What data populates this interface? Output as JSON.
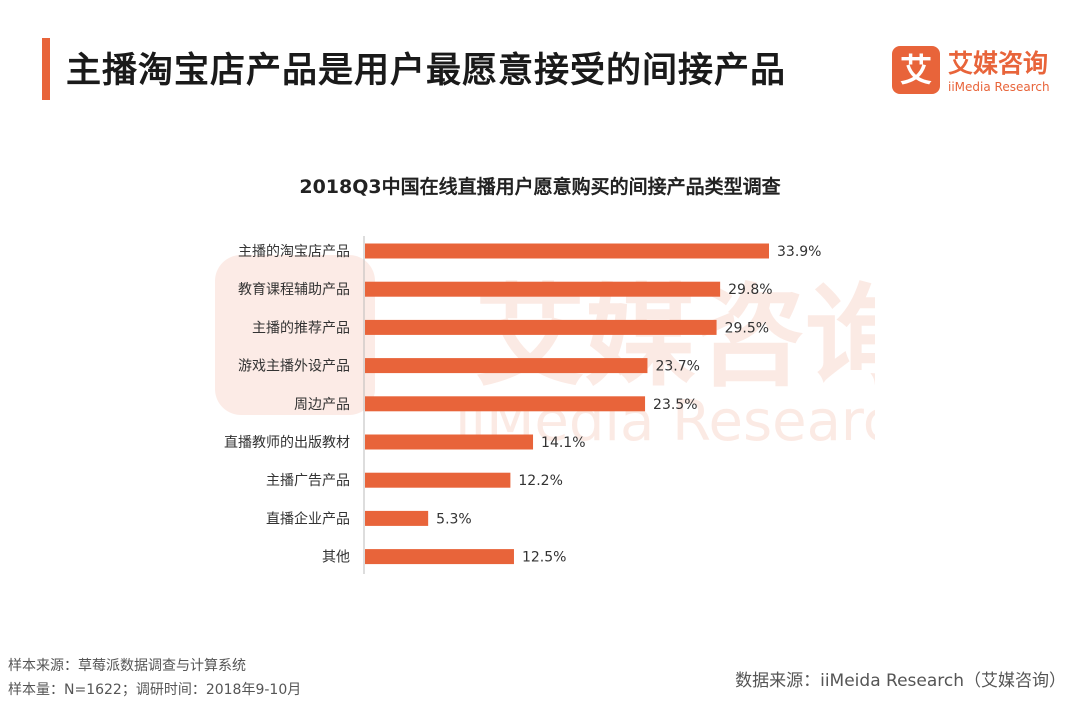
{
  "header": {
    "title": "主播淘宝店产品是用户最愿意接受的间接产品"
  },
  "logo": {
    "mark": "艾",
    "name_cn": "艾媒咨询",
    "name_en": "iiMedia Research"
  },
  "watermark": {
    "cn": "艾媒咨询",
    "en": "iiMedia Research"
  },
  "colors": {
    "accent": "#e8643a",
    "bar": "#e8643a"
  },
  "chart_data": {
    "type": "bar",
    "orientation": "horizontal",
    "title": "2018Q3中国在线直播用户愿意购买的间接产品类型调查",
    "categories": [
      "主播的淘宝店产品",
      "教育课程辅助产品",
      "主播的推荐产品",
      "游戏主播外设产品",
      "周边产品",
      "直播教师的出版教材",
      "主播广告产品",
      "直播企业产品",
      "其他"
    ],
    "values": [
      33.9,
      29.8,
      29.5,
      23.7,
      23.5,
      14.1,
      12.2,
      5.3,
      12.5
    ],
    "value_labels": [
      "33.9%",
      "29.8%",
      "29.5%",
      "23.7%",
      "23.5%",
      "14.1%",
      "12.2%",
      "5.3%",
      "12.5%"
    ],
    "unit": "%",
    "xlim": [
      0,
      35
    ],
    "xlabel": "",
    "ylabel": "",
    "grid": false,
    "legend": "none"
  },
  "footer": {
    "sample_source": "样本来源：草莓派数据调查与计算系统",
    "sample_info": "样本量：N=1622；调研时间：2018年9-10月",
    "data_source": "数据来源：iiMeida Research（艾媒咨询）"
  }
}
